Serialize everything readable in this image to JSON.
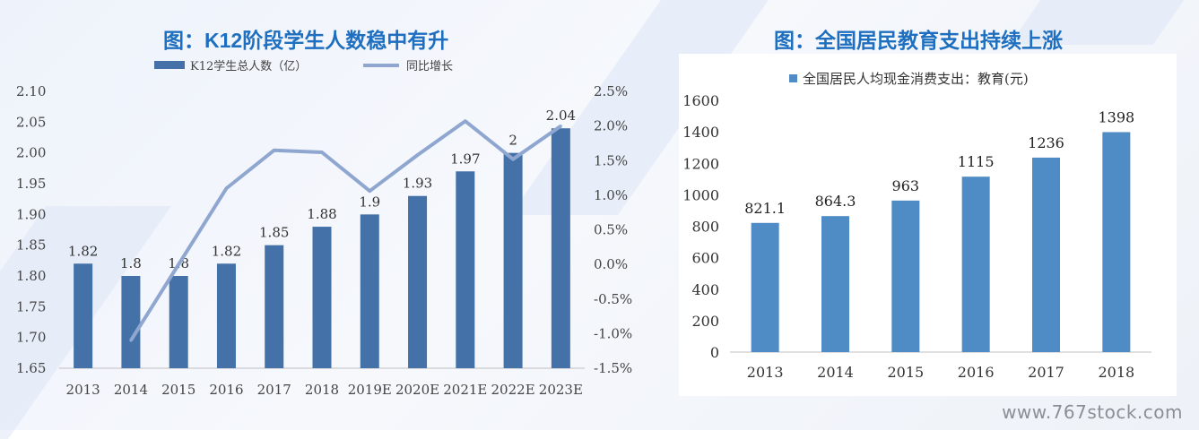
{
  "left": {
    "title": "图：K12阶段学生人数稳中有升",
    "chart_data": {
      "type": "bar+line",
      "categories": [
        "2013",
        "2014",
        "2015",
        "2016",
        "2017",
        "2018",
        "2019E",
        "2020E",
        "2021E",
        "2022E",
        "2023E"
      ],
      "series": [
        {
          "name": "K12学生总人数（亿）",
          "kind": "bar",
          "axis": "left",
          "color": "#4472a8",
          "values": [
            1.82,
            1.8,
            1.8,
            1.82,
            1.85,
            1.88,
            1.9,
            1.93,
            1.97,
            2,
            2.04
          ],
          "labels": [
            "1.82",
            "1.8",
            "1.8",
            "1.82",
            "1.85",
            "1.88",
            "1.9",
            "1.93",
            "1.97",
            "2",
            "2.04"
          ]
        },
        {
          "name": "同比增长",
          "kind": "line",
          "axis": "right",
          "color": "#8fa7d0",
          "values": [
            null,
            -1.1,
            0.0,
            1.1,
            1.65,
            1.62,
            1.06,
            1.58,
            2.07,
            1.52,
            2.0
          ]
        }
      ],
      "y_left": {
        "min": 1.65,
        "max": 2.1,
        "step": 0.05,
        "ticks": [
          "1.65",
          "1.70",
          "1.75",
          "1.80",
          "1.85",
          "1.90",
          "1.95",
          "2.00",
          "2.05",
          "2.10"
        ]
      },
      "y_right": {
        "min": -1.5,
        "max": 2.5,
        "step": 0.5,
        "ticks": [
          "-1.5%",
          "-1.0%",
          "-0.5%",
          "0.0%",
          "0.5%",
          "1.0%",
          "1.5%",
          "2.0%",
          "2.5%"
        ]
      },
      "legend_position": "top"
    }
  },
  "right": {
    "title": "图：全国居民教育支出持续上涨",
    "chart_data": {
      "type": "bar",
      "categories": [
        "2013",
        "2014",
        "2015",
        "2016",
        "2017",
        "2018"
      ],
      "series": [
        {
          "name": "全国居民人均现金消费支出：教育(元)",
          "color": "#4f8bc4",
          "values": [
            821.1,
            864.3,
            963,
            1115,
            1236,
            1398
          ],
          "labels": [
            "821.1",
            "864.3",
            "963",
            "1115",
            "1236",
            "1398"
          ]
        }
      ],
      "y": {
        "min": 0,
        "max": 1600,
        "ticks": [
          "0",
          "200",
          "400",
          "600",
          "800",
          "1000",
          "1200",
          "1400",
          "1600"
        ]
      },
      "legend_position": "top"
    }
  },
  "watermark": "www.767stock.com"
}
